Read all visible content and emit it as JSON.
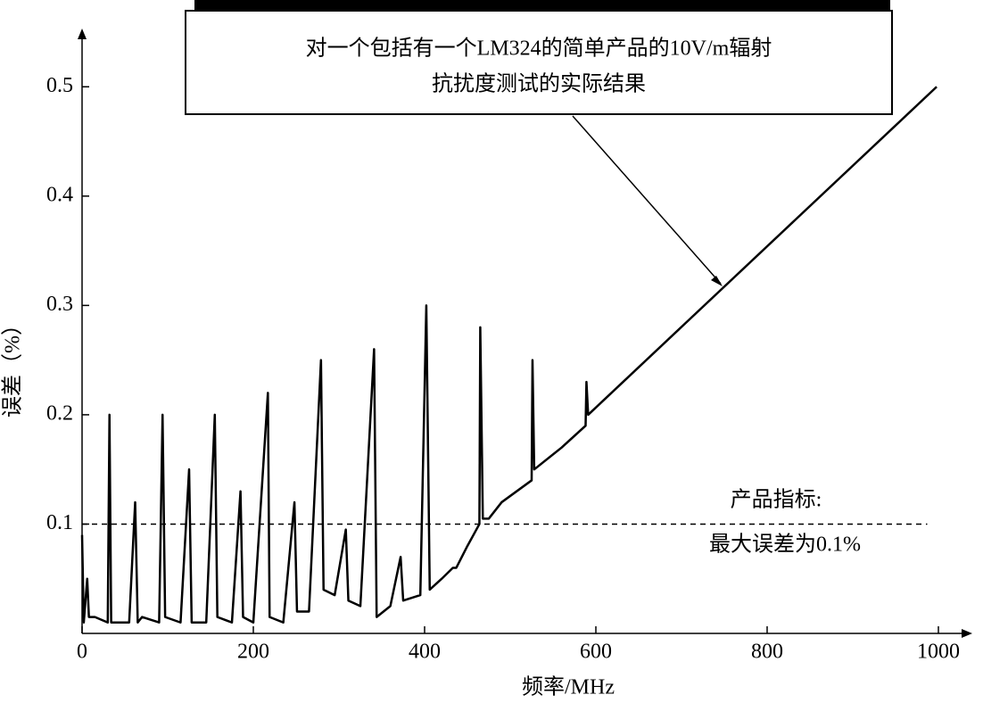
{
  "chart_data": {
    "type": "line",
    "xlabel": "频率/MHz",
    "ylabel": "误差（%）",
    "annotation": [
      "对一个包括有一个LM324的简单产品的10V/m辐射",
      "抗扰度测试的实际结果"
    ],
    "spec_label": [
      "产品指标:",
      "最大误差为0.1%"
    ],
    "spec_value": 0.1,
    "spec_xlim": [
      0,
      987
    ],
    "color": "#000000",
    "x": [
      0,
      2,
      6,
      8,
      15,
      30,
      32,
      34,
      55,
      62,
      65,
      70,
      90,
      94,
      97,
      115,
      125,
      128,
      145,
      155,
      158,
      175,
      185,
      188,
      200,
      217,
      219,
      235,
      248,
      251,
      265,
      279,
      282,
      295,
      308,
      311,
      325,
      341,
      344,
      360,
      372,
      375,
      395,
      402,
      406,
      420,
      433,
      437,
      450,
      464,
      465,
      468,
      475,
      490,
      525,
      526,
      528,
      560,
      588,
      589,
      591,
      998
    ],
    "values": [
      0.09,
      0.01,
      0.05,
      0.015,
      0.015,
      0.01,
      0.2,
      0.01,
      0.01,
      0.12,
      0.01,
      0.015,
      0.01,
      0.2,
      0.015,
      0.01,
      0.15,
      0.01,
      0.01,
      0.2,
      0.015,
      0.01,
      0.13,
      0.015,
      0.01,
      0.22,
      0.015,
      0.01,
      0.12,
      0.02,
      0.02,
      0.25,
      0.04,
      0.035,
      0.095,
      0.03,
      0.025,
      0.26,
      0.015,
      0.025,
      0.07,
      0.03,
      0.035,
      0.3,
      0.04,
      0.05,
      0.06,
      0.06,
      0.08,
      0.1,
      0.28,
      0.105,
      0.105,
      0.12,
      0.14,
      0.25,
      0.15,
      0.17,
      0.19,
      0.23,
      0.2,
      0.5
    ],
    "xlim": [
      0,
      1000
    ],
    "ylim": [
      0,
      0.55
    ],
    "xticks": [
      0,
      200,
      400,
      600,
      800,
      1000
    ],
    "yticks": [
      0.1,
      0.2,
      0.3,
      0.4,
      0.5
    ]
  }
}
